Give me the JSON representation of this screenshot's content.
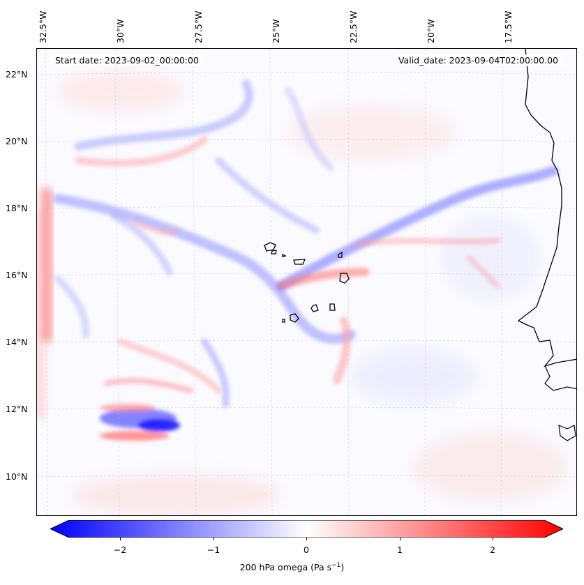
{
  "map": {
    "start_date": "Start date: 2023-09-02_00:00:00",
    "valid_date": "Valid_date: 2023-09-04T02:00:00.00",
    "lon_labels": [
      "32.5°W",
      "30°W",
      "27.5°W",
      "25°W",
      "22.5°W",
      "20°W",
      "17.5°W"
    ],
    "lat_labels": [
      "22°N",
      "20°N",
      "18°N",
      "16°N",
      "14°N",
      "12°N",
      "10°N"
    ],
    "colorbar": {
      "label": "200 hPa omega (Pa s",
      "label_exp": "−1",
      "label_close": ")",
      "ticks": [
        "−2",
        "−1",
        "0",
        "1",
        "2"
      ],
      "colors": {
        "min": "#0000ff",
        "mid": "#ffffff",
        "max": "#ff0000"
      },
      "range": [
        -2.5,
        2.5
      ]
    },
    "features": [
      "coastline-west-africa",
      "cape-verde-islands"
    ]
  }
}
